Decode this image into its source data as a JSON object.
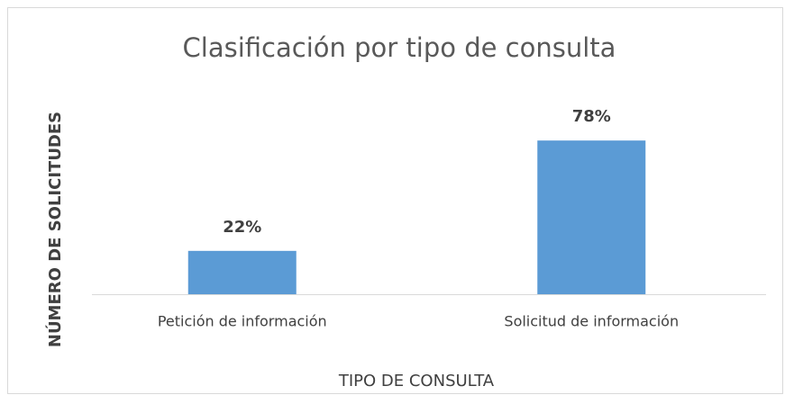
{
  "chart_data": {
    "type": "bar",
    "title": "Clasificación por tipo de consulta",
    "x_label": "TIPO DE CONSULTA",
    "y_label": "NÚMERO DE SOLICITUDES",
    "categories": [
      "Petición de información",
      "Solicitud de información"
    ],
    "values": [
      22,
      78
    ],
    "value_labels": [
      "22%",
      "78%"
    ],
    "color": "#5b9bd5"
  }
}
